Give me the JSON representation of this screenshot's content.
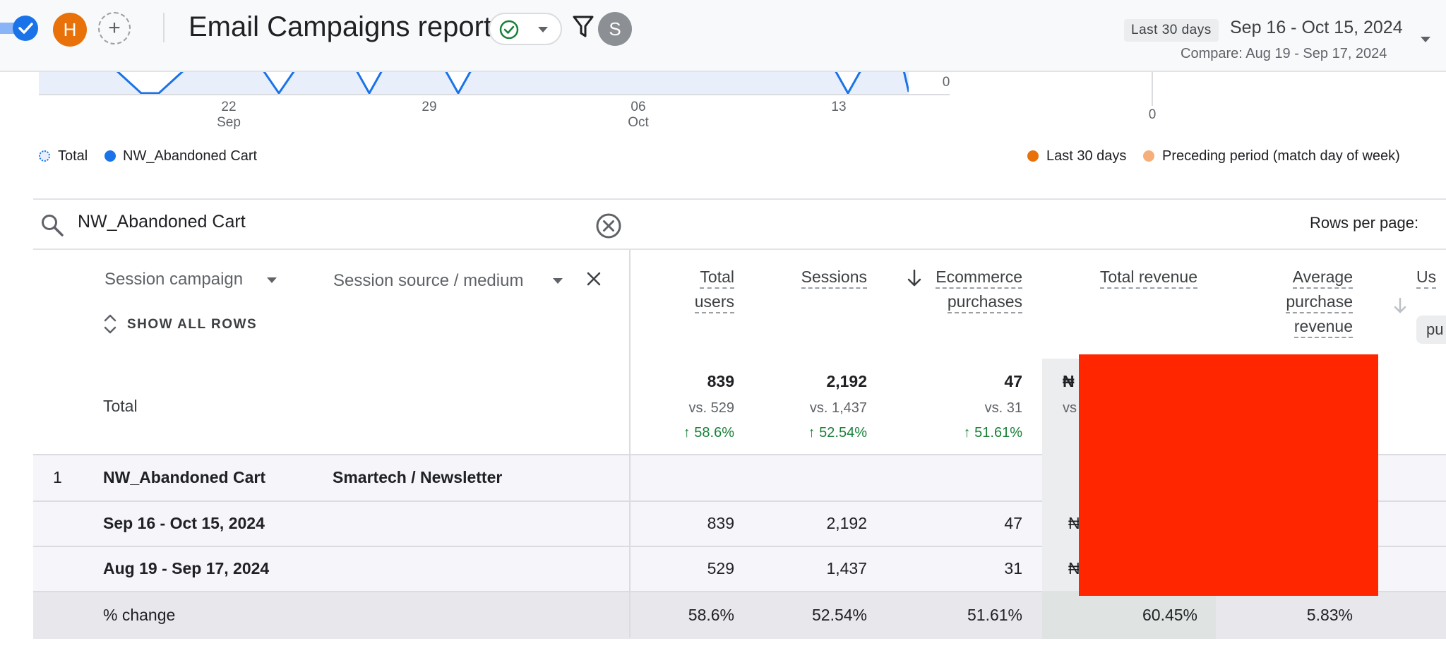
{
  "header": {
    "avatar_initial": "H",
    "add_symbol": "+",
    "title": "Email Campaigns report",
    "user_initial": "S",
    "date_range_label": "Last 30 days",
    "date_range": "Sep 16 - Oct 15, 2024",
    "compare_text": "Compare: Aug 19 - Sep 17, 2024",
    "icons": [
      "check-circle-icon",
      "chevron-down-icon",
      "filter-icon"
    ]
  },
  "chart": {
    "x_ticks": [
      {
        "day": "22",
        "month": "Sep"
      },
      {
        "day": "29",
        "month": ""
      },
      {
        "day": "06",
        "month": "Oct"
      },
      {
        "day": "13",
        "month": ""
      }
    ],
    "y_zero_main": "0",
    "y_zero_side": "0",
    "legend_left": [
      "Total",
      "NW_Abandoned Cart"
    ],
    "legend_right": [
      "Last 30 days",
      "Preceding period (match day of week)"
    ],
    "colors": {
      "series": "#1a73e8",
      "current": "#e8710a",
      "previous": "#f6ae7b",
      "area": "#e8effa"
    }
  },
  "search": {
    "value": "NW_Abandoned Cart",
    "rows_per_page_label": "Rows per page:"
  },
  "table": {
    "dimensions": [
      "Session campaign",
      "Session source / medium"
    ],
    "show_all_rows": "SHOW ALL ROWS",
    "metrics": {
      "total_users": [
        "Total",
        "users"
      ],
      "sessions": [
        "Sessions"
      ],
      "purchases": [
        "Ecommerce",
        "purchases"
      ],
      "revenue": [
        "Total revenue"
      ],
      "avg_revenue": [
        "Average",
        "purchase",
        "revenue"
      ],
      "partial_head": "Us",
      "partial_chip": "pu"
    },
    "totals": {
      "label": "Total",
      "users": "839",
      "users_vs": "vs. 529",
      "users_change": "58.6%",
      "sessions": "2,192",
      "sessions_vs": "vs. 1,437",
      "sessions_change": "52.54%",
      "purchases": "47",
      "purchases_vs": "vs. 31",
      "purchases_change": "51.61%",
      "revenue_currency": "₦",
      "revenue_vs_partial": "vs"
    },
    "row1": {
      "index": "1",
      "campaign": "NW_Abandoned Cart",
      "source": "Smartech / Newsletter"
    },
    "period_current": {
      "label": "Sep 16 - Oct 15, 2024",
      "users": "839",
      "sessions": "2,192",
      "purchases": "47",
      "revenue_currency": "₦"
    },
    "period_previous": {
      "label": "Aug 19 - Sep 17, 2024",
      "users": "529",
      "sessions": "1,437",
      "purchases": "31",
      "revenue_currency": "₦"
    },
    "change": {
      "label": "% change",
      "users": "58.6%",
      "sessions": "52.54%",
      "purchases": "51.61%",
      "revenue": "60.45%",
      "avg_revenue": "5.83%"
    }
  }
}
